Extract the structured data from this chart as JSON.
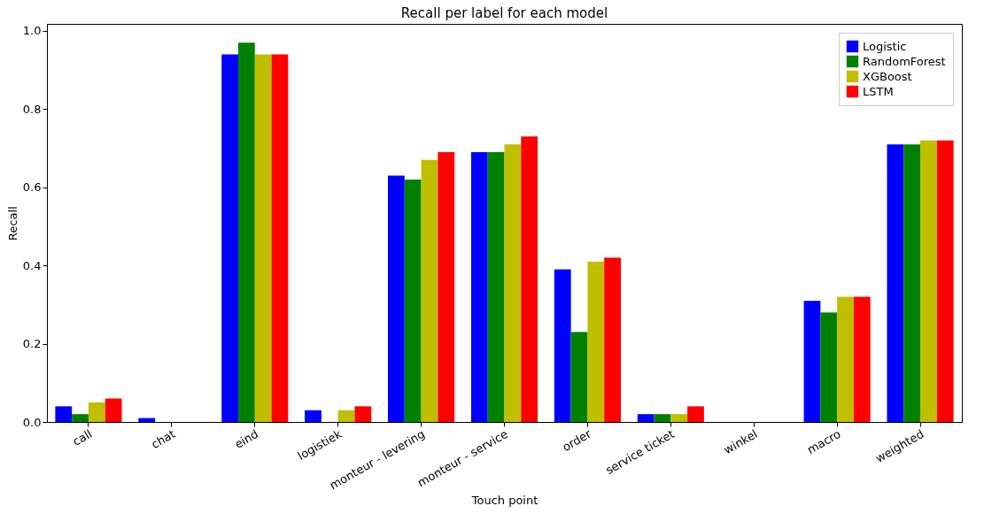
{
  "chart_data": {
    "type": "bar",
    "title": "Recall per label for each model",
    "xlabel": "Touch point",
    "ylabel": "Recall",
    "categories": [
      "call",
      "chat",
      "eind",
      "logistiek",
      "monteur - levering",
      "monteur - service",
      "order",
      "service ticket",
      "winkel",
      "macro",
      "weighted"
    ],
    "series": [
      {
        "name": "Logistic",
        "color": "#0000ff",
        "values": [
          0.04,
          0.01,
          0.94,
          0.03,
          0.63,
          0.69,
          0.39,
          0.02,
          0,
          0.31,
          0.71
        ]
      },
      {
        "name": "RandomForest",
        "color": "#008000",
        "values": [
          0.02,
          0,
          0.97,
          0,
          0.62,
          0.69,
          0.23,
          0.02,
          0,
          0.28,
          0.71
        ]
      },
      {
        "name": "XGBoost",
        "color": "#bfbf00",
        "values": [
          0.05,
          0,
          0.94,
          0.03,
          0.67,
          0.71,
          0.41,
          0.02,
          0,
          0.32,
          0.72
        ]
      },
      {
        "name": "LSTM",
        "color": "#ff0000",
        "values": [
          0.06,
          0,
          0.94,
          0.04,
          0.69,
          0.73,
          0.42,
          0.04,
          0,
          0.32,
          0.72
        ]
      }
    ],
    "ylim": [
      0,
      1.018
    ],
    "yticks": [
      {
        "value": 0,
        "label": "0.0"
      },
      0.2,
      0.4,
      0.6,
      0.8,
      {
        "value": 1,
        "label": "1.0"
      }
    ],
    "legend": "top right"
  }
}
